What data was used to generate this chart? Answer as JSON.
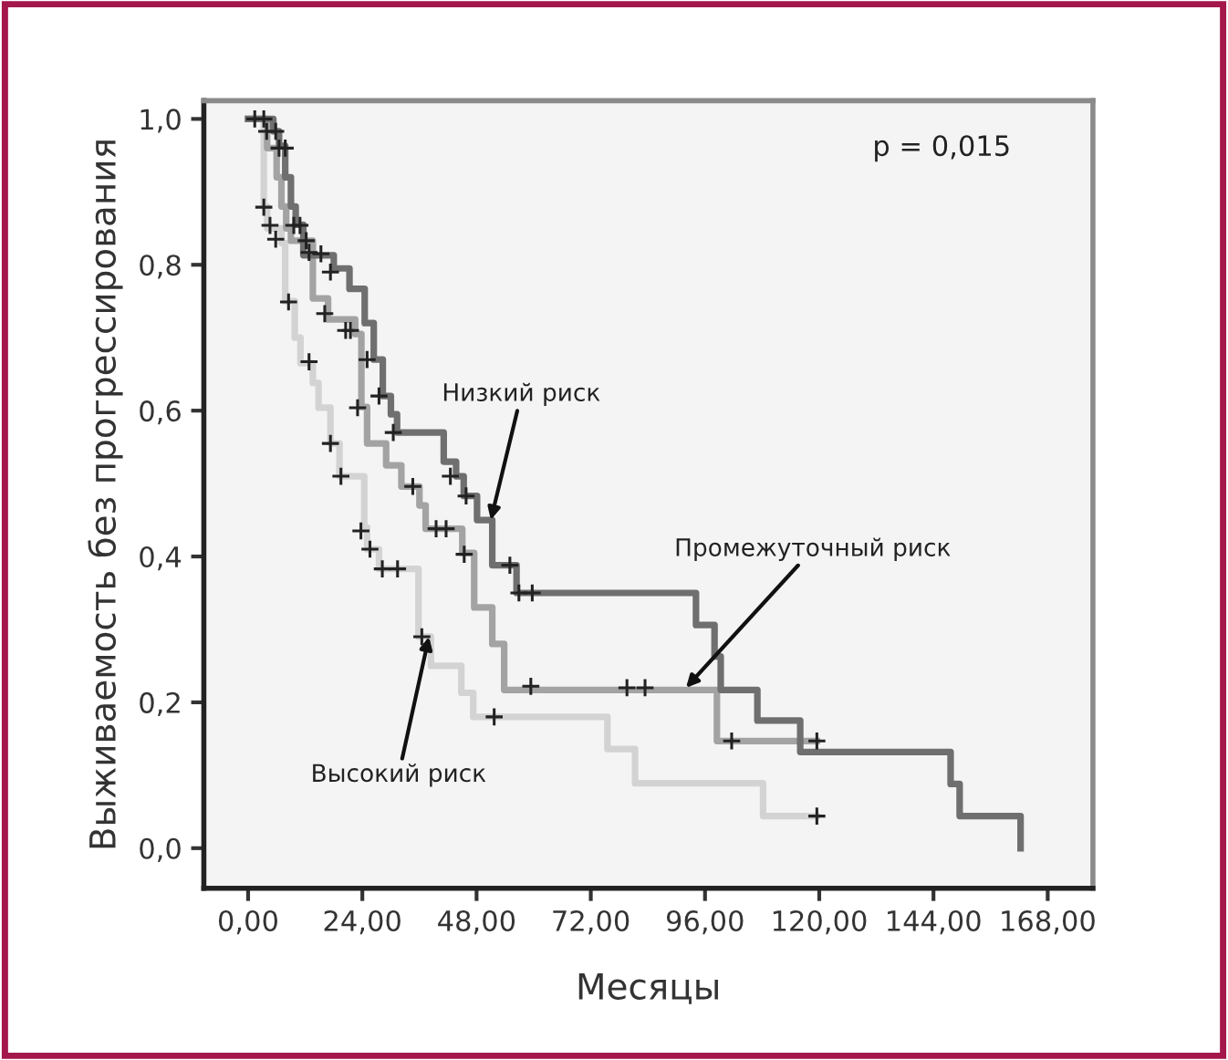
{
  "chart_data": {
    "type": "step",
    "xlabel": "Месяцы",
    "ylabel": "Выживаемость без прогрессирования",
    "xlim": [
      -9.3,
      177.5
    ],
    "ylim": [
      -0.055,
      1.025
    ],
    "xticks": [
      {
        "value": 0,
        "label": "0,00"
      },
      {
        "value": 24,
        "label": "24,00"
      },
      {
        "value": 48,
        "label": "48,00"
      },
      {
        "value": 72,
        "label": "72,00"
      },
      {
        "value": 96,
        "label": "96,00"
      },
      {
        "value": 120,
        "label": "120,00"
      },
      {
        "value": 144,
        "label": "144,00"
      },
      {
        "value": 168,
        "label": "168,00"
      }
    ],
    "yticks": [
      {
        "value": 0,
        "label": "0,0"
      },
      {
        "value": 0.2,
        "label": "0,2"
      },
      {
        "value": 0.4,
        "label": "0,4"
      },
      {
        "value": 0.6,
        "label": "0,6"
      },
      {
        "value": 0.8,
        "label": "0,8"
      },
      {
        "value": 1.0,
        "label": "1,0"
      }
    ],
    "grid": false,
    "series": [
      {
        "color": "#d3d3d3",
        "x": [
          0,
          3.3,
          4,
          7,
          7.8,
          9.8,
          11,
          13.6,
          14.8,
          17.3,
          19.2,
          24.4,
          25,
          27.5,
          35.8,
          38.4,
          44.8,
          47.3,
          75.5,
          81.3,
          108.2,
          119.5
        ],
        "values": [
          1.0,
          0.88,
          0.85,
          0.83,
          0.75,
          0.7,
          0.665,
          0.638,
          0.604,
          0.555,
          0.51,
          0.44,
          0.41,
          0.383,
          0.29,
          0.25,
          0.213,
          0.18,
          0.136,
          0.089,
          0.044,
          0.044
        ]
      },
      {
        "color": "#a3a3a3",
        "x": [
          0,
          4,
          6,
          7,
          8,
          9,
          13.6,
          16.8,
          22.5,
          23.8,
          25,
          29,
          32.2,
          36,
          37.3,
          45,
          47.5,
          51.3,
          53.8,
          98.5,
          119.5
        ],
        "values": [
          1.0,
          0.96,
          0.92,
          0.88,
          0.85,
          0.833,
          0.754,
          0.725,
          0.705,
          0.605,
          0.555,
          0.525,
          0.496,
          0.47,
          0.438,
          0.405,
          0.33,
          0.28,
          0.217,
          0.147,
          0.147
        ]
      },
      {
        "color": "#6f6f6f",
        "x": [
          0,
          5.3,
          6.5,
          7.8,
          9,
          10,
          11.6,
          18,
          21.3,
          24.5,
          26.4,
          28.3,
          30,
          31.3,
          41.1,
          43.7,
          45.3,
          48.1,
          51.3,
          56.4,
          94.1,
          98,
          99.3,
          107,
          116,
          147.6,
          149.5,
          162.3
        ],
        "values": [
          1.0,
          0.983,
          0.963,
          0.92,
          0.88,
          0.855,
          0.813,
          0.795,
          0.767,
          0.72,
          0.67,
          0.62,
          0.595,
          0.57,
          0.53,
          0.51,
          0.483,
          0.45,
          0.388,
          0.35,
          0.306,
          0.263,
          0.217,
          0.175,
          0.132,
          0.088,
          0.044,
          0.0
        ]
      },
      {
        "type": "scatter",
        "marker": "cross",
        "color": "#222222",
        "x": [
          1.4,
          3.3,
          3.9,
          5.8,
          6.5,
          7.8,
          3.3,
          4.6,
          5.8,
          9.6,
          10.9,
          12.2,
          12.8,
          15.3,
          17.3,
          8.5,
          16.1,
          20.5,
          21.5,
          25,
          12.8,
          27.5,
          23,
          30.5,
          42.5,
          45.8,
          17.3,
          19.5,
          34.6,
          39.5,
          41.6,
          45.4,
          23.7,
          25.6,
          28.2,
          31.4,
          36.5,
          55,
          56.9,
          59.7,
          59.4,
          51.7,
          79.6,
          83.4,
          101.6,
          119.5,
          119.5
        ],
        "values": [
          1.0,
          1.0,
          0.983,
          0.983,
          0.96,
          0.96,
          0.879,
          0.854,
          0.835,
          0.854,
          0.854,
          0.833,
          0.817,
          0.815,
          0.79,
          0.749,
          0.733,
          0.71,
          0.71,
          0.67,
          0.667,
          0.62,
          0.604,
          0.57,
          0.51,
          0.483,
          0.555,
          0.51,
          0.496,
          0.438,
          0.438,
          0.403,
          0.435,
          0.41,
          0.383,
          0.383,
          0.29,
          0.388,
          0.35,
          0.35,
          0.222,
          0.18,
          0.22,
          0.22,
          0.147,
          0.147,
          0.044
        ]
      }
    ],
    "annotations": [
      {
        "text": "Низкий риск",
        "x": 51,
        "y": 0.45
      },
      {
        "text": "Промежуточный риск",
        "x": 92,
        "y": 0.22
      },
      {
        "text": "Высокий риск",
        "x": 38,
        "y": 0.29
      },
      "p = 0,015"
    ]
  }
}
